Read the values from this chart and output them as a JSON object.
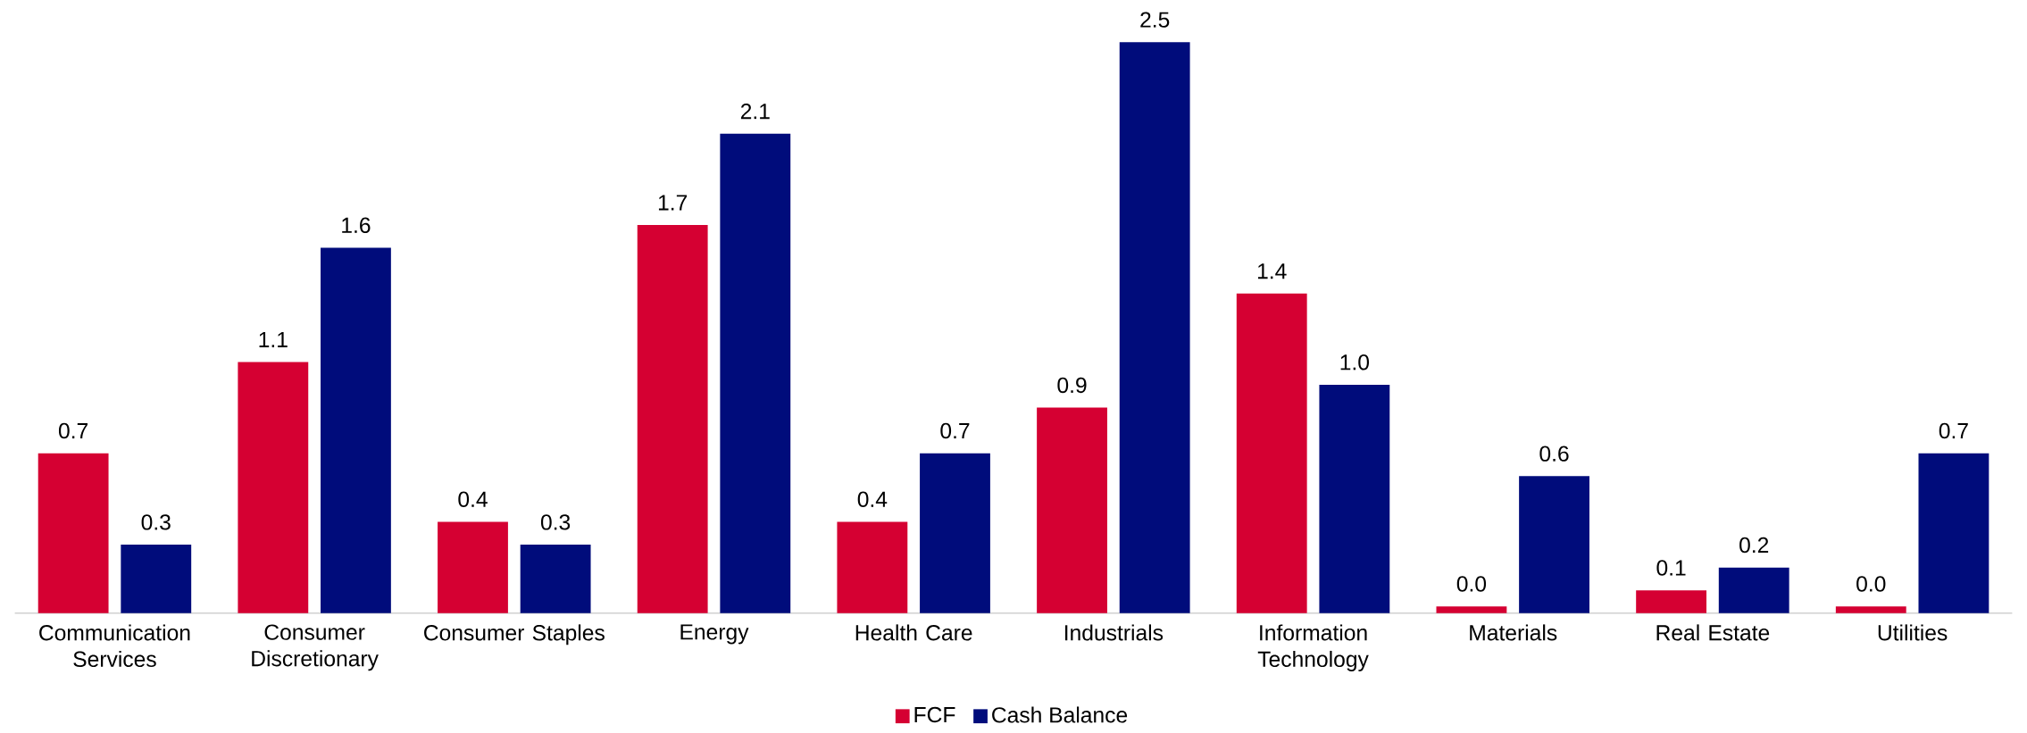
{
  "chart_data": {
    "type": "bar",
    "categories": [
      "Communication Services",
      "Consumer Discretionary",
      "Consumer Staples",
      "Energy",
      "Health Care",
      "Industrials",
      "Information Technology",
      "Materials",
      "Real Estate",
      "Utilities"
    ],
    "series": [
      {
        "name": "FCF",
        "color": "#d50032",
        "values": [
          0.7,
          1.1,
          0.4,
          1.7,
          0.4,
          0.9,
          1.4,
          0.03,
          0.1,
          0.03
        ],
        "value_labels": [
          "0.7",
          "1.1",
          "0.4",
          "1.7",
          "0.4",
          "0.9",
          "1.4",
          "0.0",
          "0.1",
          "0.0"
        ]
      },
      {
        "name": "Cash Balance",
        "color": "#000c7b",
        "values": [
          0.3,
          1.6,
          0.3,
          2.1,
          0.7,
          2.5,
          1.0,
          0.6,
          0.2,
          0.7
        ],
        "value_labels": [
          "0.3",
          "1.6",
          "0.3",
          "2.1",
          "0.7",
          "2.5",
          "1.0",
          "0.6",
          "0.2",
          "0.7"
        ]
      }
    ],
    "legend": "bottom"
  }
}
